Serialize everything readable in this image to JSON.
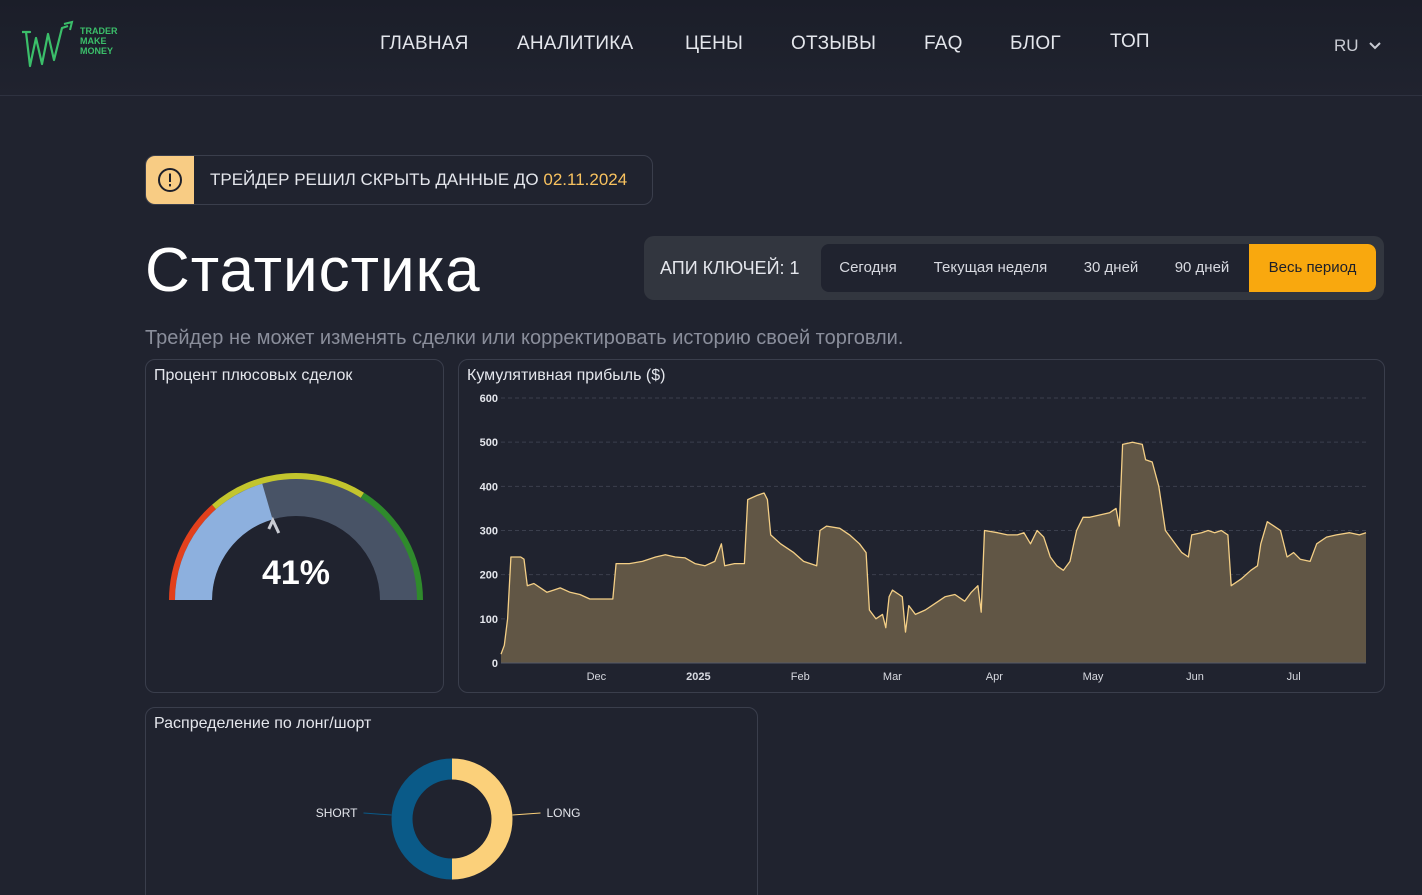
{
  "header": {
    "logo_lines": [
      "TRADER",
      "MAKE",
      "MONEY"
    ],
    "nav": [
      {
        "label": "ГЛАВНАЯ"
      },
      {
        "label": "АНАЛИТИКА"
      },
      {
        "label": "ЦЕНЫ"
      },
      {
        "label": "ОТЗЫВЫ"
      },
      {
        "label": "FAQ"
      },
      {
        "label": "БЛОГ"
      },
      {
        "label": "ТОП"
      }
    ],
    "language": "RU"
  },
  "banner": {
    "text": "ТРЕЙДЕР РЕШИЛ СКРЫТЬ ДАННЫЕ ДО",
    "date": "02.11.2024",
    "icon": "exclamation-circle-icon"
  },
  "page": {
    "title": "Статистика",
    "subtitle": "Трейдер не может изменять сделки или корректировать историю своей торговли."
  },
  "period": {
    "api_label": "АПИ КЛЮЧЕЙ: 1",
    "tabs": [
      {
        "label": "Сегодня"
      },
      {
        "label": "Текущая неделя"
      },
      {
        "label": "30 дней"
      },
      {
        "label": "90 дней"
      },
      {
        "label": "Весь период",
        "active": true
      }
    ]
  },
  "gauge": {
    "title": "Процент плюсовых сделок",
    "value": 41,
    "value_label": "41%"
  },
  "cumulative": {
    "title": "Кумулятивная прибыль ($)"
  },
  "distribution": {
    "title": "Распределение по лонг/шорт"
  },
  "chart_data": [
    {
      "type": "gauge",
      "value": 41,
      "range": [
        0,
        100
      ],
      "zones": [
        {
          "color": "#e2401c"
        },
        {
          "color": "#c3c52d"
        },
        {
          "color": "#2f8a2c"
        }
      ]
    },
    {
      "type": "area",
      "title": "Кумулятивная прибыль ($)",
      "color": "#f4cf86",
      "fill": "#615645",
      "ylim": [
        0,
        600
      ],
      "y_ticks": [
        0,
        100,
        200,
        300,
        400,
        500,
        600
      ],
      "x_ticks": [
        {
          "label": "Dec",
          "x": "2024-12-01"
        },
        {
          "label": "2025",
          "x": "2025-01-01",
          "bold": true
        },
        {
          "label": "Feb",
          "x": "2025-02-01"
        },
        {
          "label": "Mar",
          "x": "2025-03-01"
        },
        {
          "label": "Apr",
          "x": "2025-04-01"
        },
        {
          "label": "May",
          "x": "2025-05-01"
        },
        {
          "label": "Jun",
          "x": "2025-06-01"
        },
        {
          "label": "Jul",
          "x": "2025-07-01"
        }
      ],
      "x_range": [
        "2024-11-02",
        "2025-07-23"
      ],
      "points": [
        [
          "2024-11-02",
          20
        ],
        [
          "2024-11-03",
          40
        ],
        [
          "2024-11-04",
          100
        ],
        [
          "2024-11-05",
          240
        ],
        [
          "2024-11-08",
          240
        ],
        [
          "2024-11-09",
          235
        ],
        [
          "2024-11-10",
          175
        ],
        [
          "2024-11-12",
          180
        ],
        [
          "2024-11-14",
          170
        ],
        [
          "2024-11-16",
          160
        ],
        [
          "2024-11-18",
          165
        ],
        [
          "2024-11-20",
          170
        ],
        [
          "2024-11-23",
          160
        ],
        [
          "2024-11-26",
          155
        ],
        [
          "2024-11-29",
          145
        ],
        [
          "2024-12-02",
          145
        ],
        [
          "2024-12-06",
          145
        ],
        [
          "2024-12-07",
          225
        ],
        [
          "2024-12-11",
          225
        ],
        [
          "2024-12-15",
          230
        ],
        [
          "2024-12-19",
          240
        ],
        [
          "2024-12-22",
          245
        ],
        [
          "2024-12-25",
          240
        ],
        [
          "2024-12-28",
          238
        ],
        [
          "2024-12-31",
          225
        ],
        [
          "2025-01-03",
          220
        ],
        [
          "2025-01-06",
          230
        ],
        [
          "2025-01-08",
          270
        ],
        [
          "2025-01-09",
          220
        ],
        [
          "2025-01-12",
          225
        ],
        [
          "2025-01-15",
          225
        ],
        [
          "2025-01-16",
          370
        ],
        [
          "2025-01-19",
          380
        ],
        [
          "2025-01-21",
          385
        ],
        [
          "2025-01-22",
          370
        ],
        [
          "2025-01-23",
          290
        ],
        [
          "2025-01-26",
          270
        ],
        [
          "2025-01-30",
          250
        ],
        [
          "2025-02-02",
          230
        ],
        [
          "2025-02-06",
          220
        ],
        [
          "2025-02-07",
          300
        ],
        [
          "2025-02-09",
          310
        ],
        [
          "2025-02-13",
          305
        ],
        [
          "2025-02-16",
          290
        ],
        [
          "2025-02-19",
          270
        ],
        [
          "2025-02-21",
          250
        ],
        [
          "2025-02-22",
          120
        ],
        [
          "2025-02-24",
          100
        ],
        [
          "2025-02-26",
          110
        ],
        [
          "2025-02-27",
          80
        ],
        [
          "2025-02-28",
          150
        ],
        [
          "2025-03-01",
          165
        ],
        [
          "2025-03-03",
          155
        ],
        [
          "2025-03-04",
          150
        ],
        [
          "2025-03-05",
          70
        ],
        [
          "2025-03-06",
          130
        ],
        [
          "2025-03-08",
          110
        ],
        [
          "2025-03-11",
          120
        ],
        [
          "2025-03-14",
          135
        ],
        [
          "2025-03-17",
          150
        ],
        [
          "2025-03-20",
          155
        ],
        [
          "2025-03-23",
          140
        ],
        [
          "2025-03-25",
          160
        ],
        [
          "2025-03-27",
          175
        ],
        [
          "2025-03-28",
          115
        ],
        [
          "2025-03-29",
          300
        ],
        [
          "2025-04-02",
          295
        ],
        [
          "2025-04-05",
          290
        ],
        [
          "2025-04-08",
          290
        ],
        [
          "2025-04-10",
          295
        ],
        [
          "2025-04-12",
          270
        ],
        [
          "2025-04-14",
          300
        ],
        [
          "2025-04-16",
          285
        ],
        [
          "2025-04-18",
          240
        ],
        [
          "2025-04-20",
          220
        ],
        [
          "2025-04-22",
          210
        ],
        [
          "2025-04-24",
          230
        ],
        [
          "2025-04-26",
          300
        ],
        [
          "2025-04-28",
          330
        ],
        [
          "2025-04-30",
          330
        ],
        [
          "2025-05-03",
          335
        ],
        [
          "2025-05-06",
          340
        ],
        [
          "2025-05-08",
          350
        ],
        [
          "2025-05-09",
          310
        ],
        [
          "2025-05-10",
          495
        ],
        [
          "2025-05-13",
          500
        ],
        [
          "2025-05-16",
          495
        ],
        [
          "2025-05-17",
          460
        ],
        [
          "2025-05-19",
          455
        ],
        [
          "2025-05-21",
          400
        ],
        [
          "2025-05-23",
          300
        ],
        [
          "2025-05-26",
          270
        ],
        [
          "2025-05-28",
          250
        ],
        [
          "2025-05-30",
          240
        ],
        [
          "2025-05-31",
          290
        ],
        [
          "2025-06-03",
          295
        ],
        [
          "2025-06-05",
          300
        ],
        [
          "2025-06-07",
          295
        ],
        [
          "2025-06-09",
          300
        ],
        [
          "2025-06-11",
          290
        ],
        [
          "2025-06-12",
          175
        ],
        [
          "2025-06-15",
          190
        ],
        [
          "2025-06-18",
          210
        ],
        [
          "2025-06-20",
          220
        ],
        [
          "2025-06-21",
          270
        ],
        [
          "2025-06-23",
          320
        ],
        [
          "2025-06-25",
          310
        ],
        [
          "2025-06-27",
          300
        ],
        [
          "2025-06-29",
          240
        ],
        [
          "2025-07-01",
          250
        ],
        [
          "2025-07-03",
          235
        ],
        [
          "2025-07-06",
          230
        ],
        [
          "2025-07-08",
          270
        ],
        [
          "2025-07-11",
          285
        ],
        [
          "2025-07-14",
          290
        ],
        [
          "2025-07-18",
          295
        ],
        [
          "2025-07-21",
          290
        ],
        [
          "2025-07-23",
          295
        ]
      ]
    },
    {
      "type": "pie",
      "title": "Распределение по лонг/шорт",
      "slices": [
        {
          "label": "LONG",
          "value": 50,
          "color": "#fbd07a"
        },
        {
          "label": "SHORT",
          "value": 50,
          "color": "#0a5a88"
        }
      ]
    }
  ]
}
